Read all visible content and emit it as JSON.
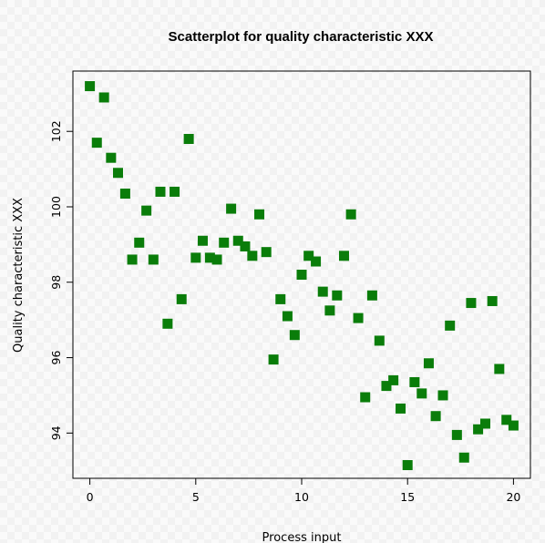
{
  "chart_data": {
    "type": "scatter",
    "title": "Scatterplot for quality characteristic XXX",
    "xlabel": "Process input",
    "ylabel": "Quality characteristic XXX",
    "xlim": [
      -0.8,
      20.8
    ],
    "ylim": [
      92.8,
      103.6
    ],
    "xticks": [
      0,
      5,
      10,
      15,
      20
    ],
    "yticks": [
      94,
      96,
      98,
      100,
      102
    ],
    "grid": false,
    "marker_color": "#0a7d0a",
    "points": [
      {
        "x": 0.0,
        "y": 103.2
      },
      {
        "x": 0.33,
        "y": 101.7
      },
      {
        "x": 0.67,
        "y": 102.9
      },
      {
        "x": 1.0,
        "y": 101.3
      },
      {
        "x": 1.33,
        "y": 100.9
      },
      {
        "x": 1.67,
        "y": 100.35
      },
      {
        "x": 2.0,
        "y": 98.6
      },
      {
        "x": 2.33,
        "y": 99.05
      },
      {
        "x": 2.67,
        "y": 99.9
      },
      {
        "x": 3.0,
        "y": 98.6
      },
      {
        "x": 3.33,
        "y": 100.4
      },
      {
        "x": 3.67,
        "y": 96.9
      },
      {
        "x": 4.0,
        "y": 100.4
      },
      {
        "x": 4.33,
        "y": 97.55
      },
      {
        "x": 4.67,
        "y": 101.8
      },
      {
        "x": 5.0,
        "y": 98.65
      },
      {
        "x": 5.33,
        "y": 99.1
      },
      {
        "x": 5.67,
        "y": 98.65
      },
      {
        "x": 6.0,
        "y": 98.6
      },
      {
        "x": 6.33,
        "y": 99.05
      },
      {
        "x": 6.67,
        "y": 99.95
      },
      {
        "x": 7.0,
        "y": 99.1
      },
      {
        "x": 7.33,
        "y": 98.95
      },
      {
        "x": 7.67,
        "y": 98.7
      },
      {
        "x": 8.0,
        "y": 99.8
      },
      {
        "x": 8.33,
        "y": 98.8
      },
      {
        "x": 8.67,
        "y": 95.95
      },
      {
        "x": 9.0,
        "y": 97.55
      },
      {
        "x": 9.33,
        "y": 97.1
      },
      {
        "x": 9.67,
        "y": 96.6
      },
      {
        "x": 10.0,
        "y": 98.2
      },
      {
        "x": 10.33,
        "y": 98.7
      },
      {
        "x": 10.67,
        "y": 98.55
      },
      {
        "x": 11.0,
        "y": 97.75
      },
      {
        "x": 11.33,
        "y": 97.25
      },
      {
        "x": 11.67,
        "y": 97.65
      },
      {
        "x": 12.0,
        "y": 98.7
      },
      {
        "x": 12.33,
        "y": 99.8
      },
      {
        "x": 12.67,
        "y": 97.05
      },
      {
        "x": 13.0,
        "y": 94.95
      },
      {
        "x": 13.33,
        "y": 97.65
      },
      {
        "x": 13.67,
        "y": 96.45
      },
      {
        "x": 14.0,
        "y": 95.25
      },
      {
        "x": 14.33,
        "y": 95.4
      },
      {
        "x": 14.67,
        "y": 94.65
      },
      {
        "x": 15.0,
        "y": 93.15
      },
      {
        "x": 15.33,
        "y": 95.35
      },
      {
        "x": 15.67,
        "y": 95.05
      },
      {
        "x": 16.0,
        "y": 95.85
      },
      {
        "x": 16.33,
        "y": 94.45
      },
      {
        "x": 16.67,
        "y": 95.0
      },
      {
        "x": 17.0,
        "y": 96.85
      },
      {
        "x": 17.33,
        "y": 93.95
      },
      {
        "x": 17.67,
        "y": 93.35
      },
      {
        "x": 18.0,
        "y": 97.45
      },
      {
        "x": 18.33,
        "y": 94.1
      },
      {
        "x": 18.67,
        "y": 94.25
      },
      {
        "x": 19.0,
        "y": 97.5
      },
      {
        "x": 19.33,
        "y": 95.7
      },
      {
        "x": 19.67,
        "y": 94.35
      },
      {
        "x": 20.0,
        "y": 94.2
      }
    ]
  }
}
